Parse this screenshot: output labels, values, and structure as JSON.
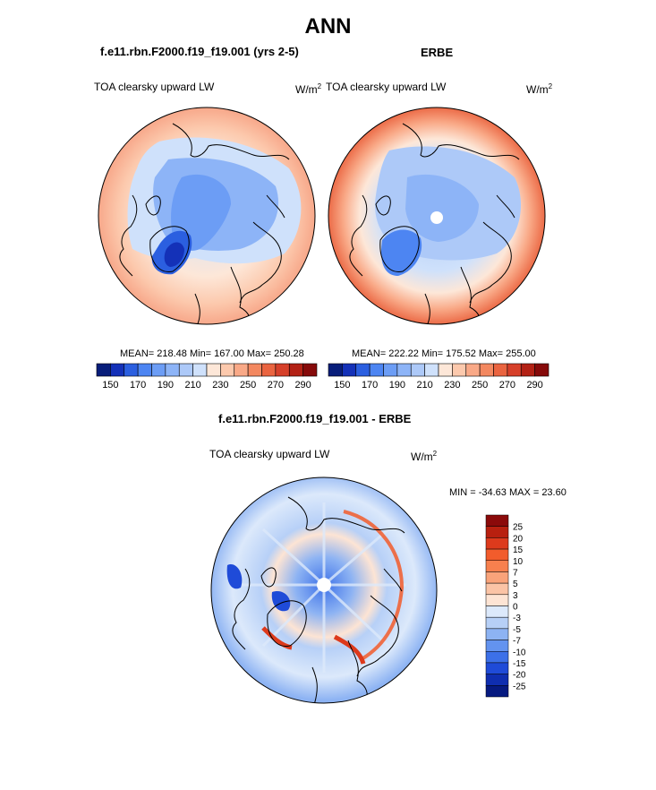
{
  "header": {
    "title": "ANN",
    "left_subtitle": "f.e11.rbn.F2000.f19_f19.001 (yrs 2-5)",
    "right_subtitle": "ERBE",
    "diff_subtitle": "f.e11.rbn.F2000.f19_f19.001 - ERBE"
  },
  "panels": {
    "left": {
      "variable": "TOA clearsky upward LW",
      "units": "W/m",
      "units_exp": "2",
      "stats": "MEAN= 218.48  Min= 167.00  Max= 250.28"
    },
    "right": {
      "variable": "TOA clearsky upward LW",
      "units": "W/m",
      "units_exp": "2",
      "stats": "MEAN= 222.22  Min= 175.52  Max= 255.00"
    },
    "diff": {
      "variable": "TOA clearsky upward LW",
      "units": "W/m",
      "units_exp": "2",
      "stats": "MIN = -34.63 MAX =  23.60"
    }
  },
  "chart_data": [
    {
      "type": "heatmap",
      "projection": "polar stereographic (north pole)",
      "field": "TOA clearsky upward LW",
      "mean": 218.48,
      "min": 167.0,
      "max": 250.28,
      "colorbar": {
        "orientation": "horizontal",
        "levels": [
          150,
          160,
          170,
          180,
          190,
          200,
          210,
          220,
          230,
          240,
          250,
          260,
          270,
          280,
          290
        ],
        "tick_labels": [
          "150",
          "170",
          "190",
          "210",
          "230",
          "250",
          "270",
          "290"
        ],
        "colors": [
          "#081d7a",
          "#1431b8",
          "#2b5fe0",
          "#4d85f2",
          "#6c9df5",
          "#8db4f7",
          "#adc9f8",
          "#cfe1fb",
          "#fde7d8",
          "#fcc9ad",
          "#f9a987",
          "#f38860",
          "#ea6440",
          "#d6402a",
          "#b32115",
          "#860a0a"
        ]
      }
    },
    {
      "type": "heatmap",
      "projection": "polar stereographic (north pole)",
      "field": "TOA clearsky upward LW",
      "mean": 222.22,
      "min": 175.52,
      "max": 255.0,
      "colorbar": {
        "orientation": "horizontal",
        "levels": [
          150,
          160,
          170,
          180,
          190,
          200,
          210,
          220,
          230,
          240,
          250,
          260,
          270,
          280,
          290
        ],
        "tick_labels": [
          "150",
          "170",
          "190",
          "210",
          "230",
          "250",
          "270",
          "290"
        ],
        "colors": [
          "#081d7a",
          "#1431b8",
          "#2b5fe0",
          "#4d85f2",
          "#6c9df5",
          "#8db4f7",
          "#adc9f8",
          "#cfe1fb",
          "#fde7d8",
          "#fcc9ad",
          "#f9a987",
          "#f38860",
          "#ea6440",
          "#d6402a",
          "#b32115",
          "#860a0a"
        ]
      }
    },
    {
      "type": "heatmap",
      "projection": "polar stereographic (north pole)",
      "field": "TOA clearsky upward LW difference",
      "min": -34.63,
      "max": 23.6,
      "colorbar": {
        "orientation": "vertical",
        "tick_labels": [
          "25",
          "20",
          "15",
          "10",
          "7",
          "5",
          "3",
          "0",
          "-3",
          "-5",
          "-7",
          "-10",
          "-15",
          "-20",
          "-25"
        ],
        "colors": [
          "#8b0a0a",
          "#b8200f",
          "#dd3a1c",
          "#f25c2c",
          "#f7804e",
          "#f9a37a",
          "#fbc4a6",
          "#fde4d4",
          "#dce9fb",
          "#b7d0f7",
          "#8db3f3",
          "#6393ef",
          "#3c70e8",
          "#1f4bd8",
          "#0f2eb0",
          "#061a80"
        ]
      }
    }
  ]
}
